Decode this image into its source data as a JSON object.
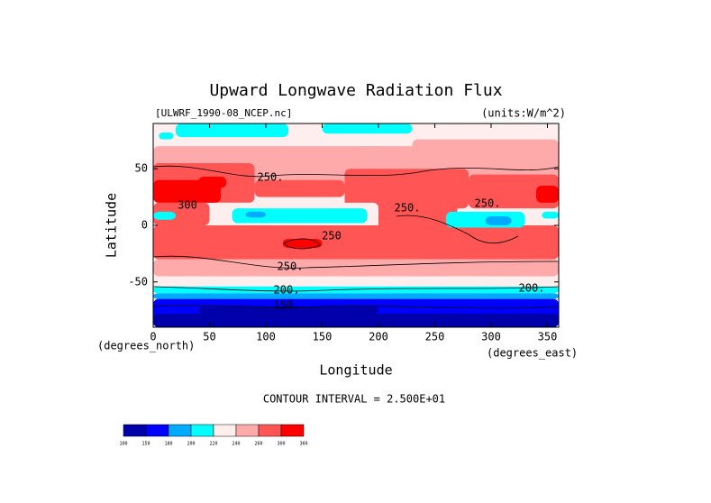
{
  "chart_data": {
    "type": "contour",
    "title": "Upward Longwave Radiation Flux",
    "subtitle_left": "[ULWRF_1990-08_NCEP.nc]",
    "subtitle_right": "(units:W/m^2)",
    "x_label": "Longitude",
    "y_label": "Latitude",
    "x_unit": "(degrees_east)",
    "y_unit": "(degrees_north)",
    "xlim": [
      0,
      360
    ],
    "ylim": [
      -90,
      90
    ],
    "xticks": [
      0,
      50,
      100,
      150,
      200,
      250,
      300,
      350
    ],
    "yticks": [
      -50,
      0,
      50
    ],
    "contour_interval": "CONTOUR INTERVAL = 2.500E+01",
    "contour_labels": [
      "250.",
      "300",
      "250.",
      "250.",
      "250",
      "250.",
      "200.",
      "200.",
      "150."
    ],
    "colorbar": {
      "levels": [
        100,
        150,
        180,
        200,
        220,
        240,
        260,
        300,
        360
      ],
      "colors": [
        "#0000aa",
        "#0000ff",
        "#00aaff",
        "#00ffff",
        "#ffeeee",
        "#ffaaaa",
        "#ff5555",
        "#ff0000"
      ]
    }
  }
}
